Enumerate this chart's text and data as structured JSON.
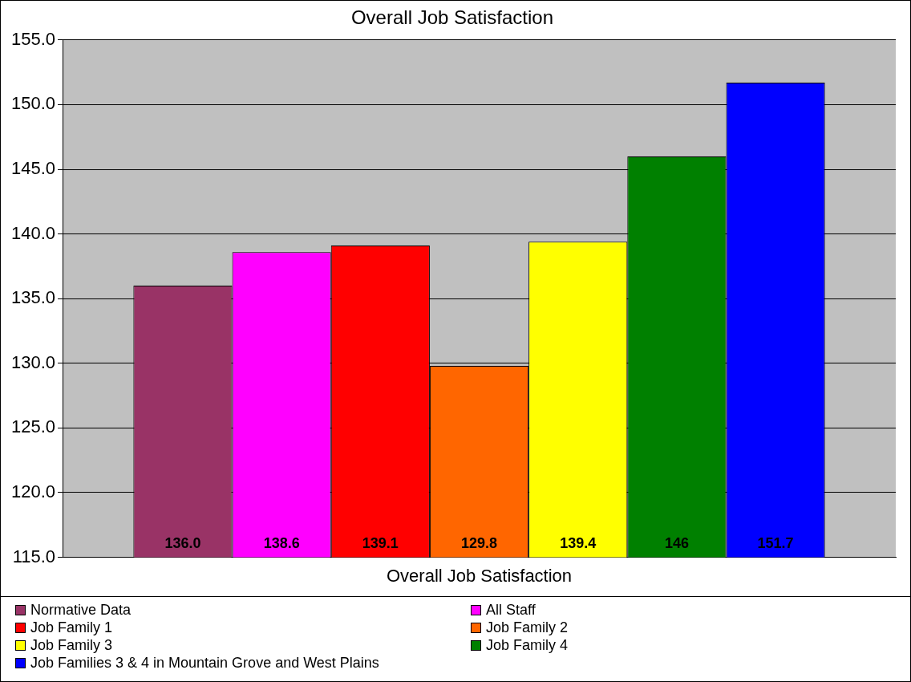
{
  "chart_data": {
    "type": "bar",
    "title": "Overall Job Satisfaction",
    "categories": [
      "Overall Job Satisfaction"
    ],
    "series": [
      {
        "name": "Normative Data",
        "color": "#993366",
        "values": [
          136.0
        ],
        "value_labels": [
          "136.0"
        ]
      },
      {
        "name": "All Staff",
        "color": "#ff00ff",
        "values": [
          138.6
        ],
        "value_labels": [
          "138.6"
        ]
      },
      {
        "name": "Job Family 1",
        "color": "#ff0000",
        "values": [
          139.1
        ],
        "value_labels": [
          "139.1"
        ]
      },
      {
        "name": "Job Family 2",
        "color": "#ff6600",
        "values": [
          129.8
        ],
        "value_labels": [
          "129.8"
        ]
      },
      {
        "name": "Job Family 3",
        "color": "#ffff00",
        "values": [
          139.4
        ],
        "value_labels": [
          "139.4"
        ]
      },
      {
        "name": "Job Family 4",
        "color": "#008000",
        "values": [
          146
        ],
        "value_labels": [
          "146"
        ]
      },
      {
        "name": "Job Families 3 & 4 in Mountain Grove and West Plains",
        "color": "#0000ff",
        "values": [
          151.7
        ],
        "value_labels": [
          "151.7"
        ]
      }
    ],
    "ylim": [
      115,
      155
    ],
    "yticks": [
      {
        "value": 115,
        "label": "115.0"
      },
      {
        "value": 120,
        "label": "120.0"
      },
      {
        "value": 125,
        "label": "125.0"
      },
      {
        "value": 130,
        "label": "130.0"
      },
      {
        "value": 135,
        "label": "135.0"
      },
      {
        "value": 140,
        "label": "140.0"
      },
      {
        "value": 145,
        "label": "145.0"
      },
      {
        "value": 150,
        "label": "150.0"
      },
      {
        "value": 155,
        "label": "155.0"
      }
    ],
    "grid": "y",
    "legend": "bottom"
  }
}
